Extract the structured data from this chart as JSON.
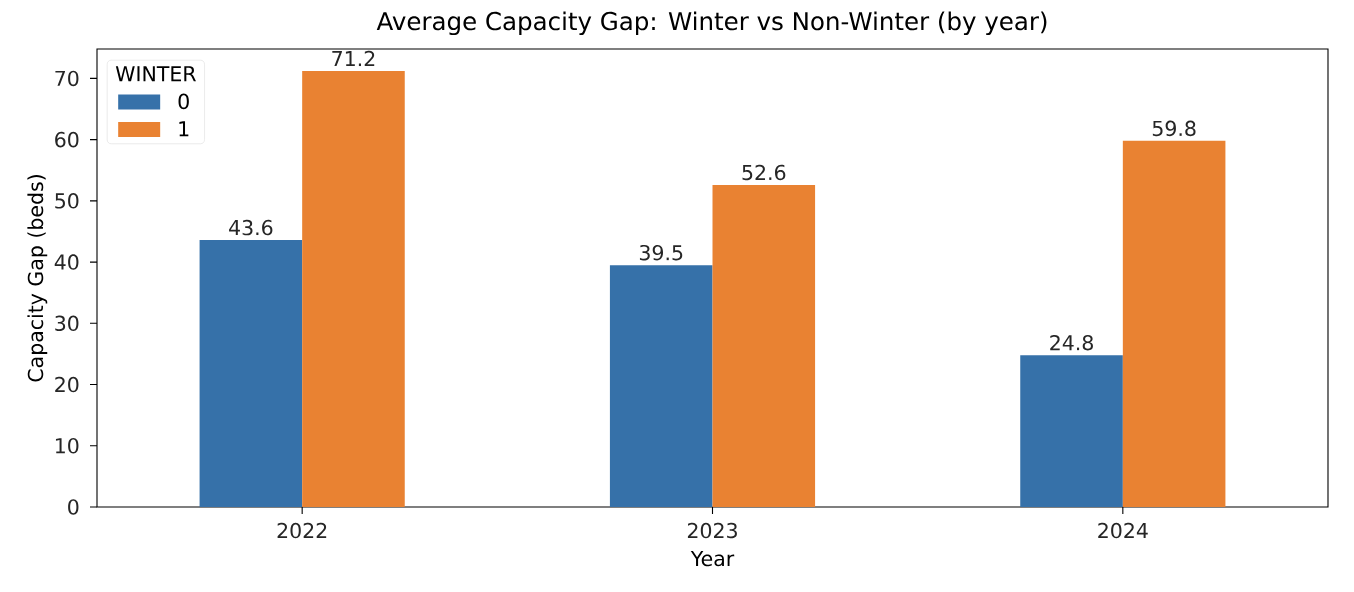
{
  "chart_data": {
    "type": "bar",
    "title": "Average Capacity Gap: Winter vs Non-Winter (by year)",
    "xlabel": "Year",
    "ylabel": "Capacity Gap (beds)",
    "legend_title": "WINTER",
    "categories": [
      "2022",
      "2023",
      "2024"
    ],
    "series": [
      {
        "name": "0",
        "color": "#3671a9",
        "values": [
          43.6,
          39.5,
          24.8
        ]
      },
      {
        "name": "1",
        "color": "#e98232",
        "values": [
          71.2,
          52.6,
          59.8
        ]
      }
    ],
    "ylim": [
      0,
      74.8
    ],
    "yticks": [
      0,
      10,
      20,
      30,
      40,
      50,
      60,
      70
    ],
    "data_labels": true,
    "legend": "top left"
  }
}
